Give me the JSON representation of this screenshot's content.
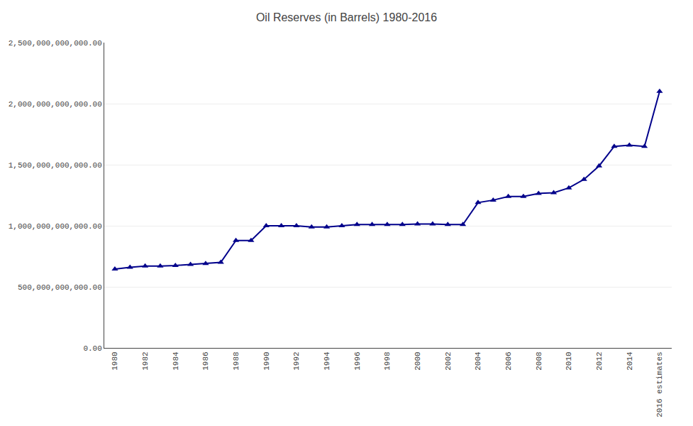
{
  "chart_data": {
    "type": "line",
    "title": "Oil Reserves (in Barrels) 1980-2016",
    "x": [
      1980,
      1981,
      1982,
      1983,
      1984,
      1985,
      1986,
      1987,
      1988,
      1989,
      1990,
      1991,
      1992,
      1993,
      1994,
      1995,
      1996,
      1997,
      1998,
      1999,
      2000,
      2001,
      2002,
      2003,
      2004,
      2005,
      2006,
      2007,
      2008,
      2009,
      2010,
      2011,
      2012,
      2013,
      2014,
      2015,
      2016
    ],
    "values": [
      645000000000,
      660000000000,
      670000000000,
      670000000000,
      675000000000,
      683000000000,
      690000000000,
      700000000000,
      880000000000,
      880000000000,
      1000000000000,
      1000000000000,
      1000000000000,
      990000000000,
      990000000000,
      1000000000000,
      1010000000000,
      1010000000000,
      1010000000000,
      1010000000000,
      1015000000000,
      1015000000000,
      1010000000000,
      1010000000000,
      1190000000000,
      1210000000000,
      1240000000000,
      1240000000000,
      1265000000000,
      1270000000000,
      1310000000000,
      1380000000000,
      1490000000000,
      1650000000000,
      1660000000000,
      1650000000000,
      2100000000000
    ],
    "color": "#00008B",
    "marker": "triangle-up",
    "xlim": [
      1979.3,
      2016.8
    ],
    "xticks": [
      1980,
      1982,
      1984,
      1986,
      1988,
      1990,
      1992,
      1994,
      1996,
      1998,
      2000,
      2002,
      2004,
      2006,
      2008,
      2010,
      2012,
      2014,
      {
        "value": 2016,
        "label": "2016 estimates"
      }
    ],
    "ylim": [
      0,
      2500000000000
    ],
    "yticks": [
      {
        "value": 0,
        "label": "0.00"
      },
      {
        "value": 500000000000,
        "label": "500,000,000,000.00"
      },
      {
        "value": 1000000000000,
        "label": "1,000,000,000,000.00"
      },
      {
        "value": 1500000000000,
        "label": "1,500,000,000,000.00"
      },
      {
        "value": 2000000000000,
        "label": "2,000,000,000,000.00"
      },
      {
        "value": 2500000000000,
        "label": "2,500,000,000,000.00"
      }
    ],
    "grid": "y"
  }
}
